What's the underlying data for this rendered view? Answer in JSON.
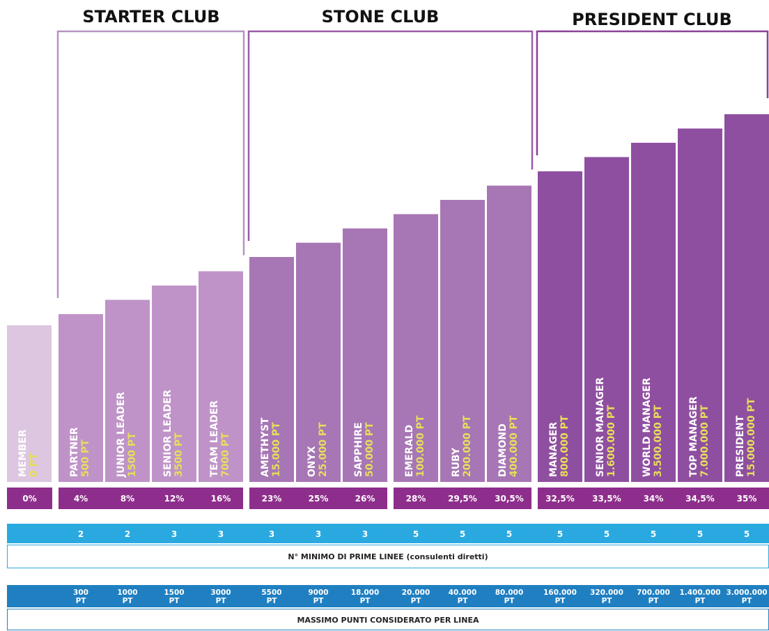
{
  "clubs": [
    {
      "title": "STARTER CLUB",
      "ranks": [
        {
          "name": "PARTNER",
          "points": "500 PT",
          "percent": "4%",
          "min_lines": "2",
          "max_points": {
            "amount": "300",
            "unit": "PT"
          }
        },
        {
          "name": "JUNIOR LEADER",
          "points": "1500 PT",
          "percent": "8%",
          "min_lines": "2",
          "max_points": {
            "amount": "1000",
            "unit": "PT"
          }
        },
        {
          "name": "SENIOR LEADER",
          "points": "3500 PT",
          "percent": "12%",
          "min_lines": "3",
          "max_points": {
            "amount": "1500",
            "unit": "PT"
          }
        },
        {
          "name": "TEAM LEADER",
          "points": "7000 PT",
          "percent": "16%",
          "min_lines": "3",
          "max_points": {
            "amount": "3000",
            "unit": "PT"
          }
        }
      ]
    },
    {
      "title": "STONE CLUB",
      "ranks": [
        {
          "name": "AMETHYST",
          "points": "15.000 PT",
          "percent": "23%",
          "min_lines": "3",
          "max_points": {
            "amount": "5500",
            "unit": "PT"
          }
        },
        {
          "name": "ONYX",
          "points": "25.000 PT",
          "percent": "25%",
          "min_lines": "3",
          "max_points": {
            "amount": "9000",
            "unit": "PT"
          }
        },
        {
          "name": "SAPPHIRE",
          "points": "50.000 PT",
          "percent": "26%",
          "min_lines": "3",
          "max_points": {
            "amount": "18.000",
            "unit": "PT"
          }
        },
        {
          "name": "EMERALD",
          "points": "100.000 PT",
          "percent": "28%",
          "min_lines": "5",
          "max_points": {
            "amount": "20.000",
            "unit": "PT"
          }
        },
        {
          "name": "RUBY",
          "points": "200.000 PT",
          "percent": "29,5%",
          "min_lines": "5",
          "max_points": {
            "amount": "40.000",
            "unit": "PT"
          }
        },
        {
          "name": "DIAMOND",
          "points": "400.000 PT",
          "percent": "30,5%",
          "min_lines": "5",
          "max_points": {
            "amount": "80.000",
            "unit": "PT"
          }
        }
      ]
    },
    {
      "title": "PRESIDENT CLUB",
      "ranks": [
        {
          "name": "MANAGER",
          "points": "800.000 PT",
          "percent": "32,5%",
          "min_lines": "5",
          "max_points": {
            "amount": "160.000",
            "unit": "PT"
          }
        },
        {
          "name": "SENIOR MANAGER",
          "points": "1.600.000 PT",
          "percent": "33,5%",
          "min_lines": "5",
          "max_points": {
            "amount": "320.000",
            "unit": "PT"
          }
        },
        {
          "name": "WORLD MANAGER",
          "points": "3.500.000 PT",
          "percent": "34%",
          "min_lines": "5",
          "max_points": {
            "amount": "700.000",
            "unit": "PT"
          }
        },
        {
          "name": "TOP MANAGER",
          "points": "7.000.000 PT",
          "percent": "34,5%",
          "min_lines": "5",
          "max_points": {
            "amount": "1.400.000",
            "unit": "PT"
          }
        },
        {
          "name": "PRESIDENT",
          "points": "15.000.000 PT",
          "percent": "35%",
          "min_lines": "5",
          "max_points": {
            "amount": "3.000.000",
            "unit": "PT"
          }
        }
      ]
    }
  ],
  "member": {
    "name": "MEMBER",
    "points": "0 PT",
    "percent": "0%"
  },
  "min_lines_label": "N° MINIMO DI PRIME LINEE (consulenti diretti)",
  "max_points_label": "MASSIMO PUNTI CONSIDERATO PER LINEA"
}
